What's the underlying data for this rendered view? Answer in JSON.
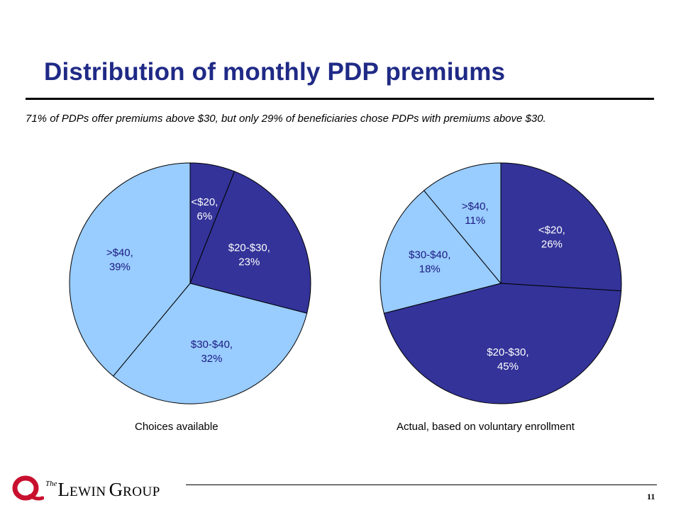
{
  "slide": {
    "title": "Distribution of monthly PDP premiums",
    "subtitle": "71% of PDPs offer premiums above $30, but only 29% of beneficiaries chose PDPs with premiums above $30.",
    "page_number": "11"
  },
  "logo": {
    "the": "The",
    "word1_initial": "L",
    "word1_rest": "EWIN",
    "word2_initial": "G",
    "word2_rest": "ROUP"
  },
  "colors": {
    "title": "#1f2a86",
    "dark_slice": "#333399",
    "light_slice": "#99ccff",
    "logo_red": "#c8102e"
  },
  "chart_data": [
    {
      "type": "pie",
      "caption": "Choices available",
      "slices": [
        {
          "label": "<$20,",
          "value": 6,
          "value_label": "6%",
          "color": "#333399"
        },
        {
          "label": "$20-$30,",
          "value": 23,
          "value_label": "23%",
          "color": "#333399"
        },
        {
          "label": "$30-$40,",
          "value": 32,
          "value_label": "32%",
          "color": "#99ccff"
        },
        {
          "label": ">$40,",
          "value": 39,
          "value_label": "39%",
          "color": "#99ccff"
        }
      ]
    },
    {
      "type": "pie",
      "caption": "Actual, based on voluntary enrollment",
      "slices": [
        {
          "label": "<$20,",
          "value": 26,
          "value_label": "26%",
          "color": "#333399"
        },
        {
          "label": "$20-$30,",
          "value": 45,
          "value_label": "45%",
          "color": "#333399"
        },
        {
          "label": "$30-$40,",
          "value": 18,
          "value_label": "18%",
          "color": "#99ccff"
        },
        {
          "label": ">$40,",
          "value": 11,
          "value_label": "11%",
          "color": "#99ccff"
        }
      ]
    }
  ]
}
